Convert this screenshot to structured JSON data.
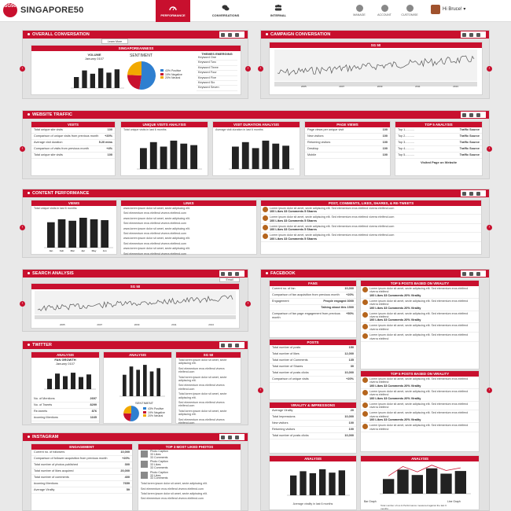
{
  "app": {
    "logo_badge": "SG50",
    "logo_text": "SINGAPORE50"
  },
  "nav": {
    "tabs": [
      {
        "label": "PERFORMANCE"
      },
      {
        "label": "CONVERSATIONS"
      },
      {
        "label": "INTERNAL"
      }
    ]
  },
  "utilities": [
    {
      "label": "MANAGE"
    },
    {
      "label": "ACCOUNT"
    },
    {
      "label": "CUSTOMISE"
    }
  ],
  "user": {
    "greeting": "Hi Bruce!"
  },
  "overall": {
    "title": "OVERALL CONVERSATION",
    "learn_more": "Learn More",
    "banner": "SINGAPOREANNESS",
    "volume_title": "VOLUME",
    "volume_date": "January 0107",
    "volume_values": [
      100,
      80,
      60,
      40,
      20
    ],
    "sentiment_title": "SENTIMENT",
    "sentiment": [
      {
        "label": "43% Positive",
        "value": 43,
        "color": "#2e7fd0"
      },
      {
        "label": "19% Negative",
        "value": 19,
        "color": "#c8102e"
      },
      {
        "label": "20% Neutral",
        "value": 20,
        "color": "#f2a900"
      }
    ],
    "themes_title": "THEMES EMERGING",
    "themes": [
      "Keyword One",
      "Keyword Two",
      "Keyword Three",
      "Keyword Four",
      "Keyword Five",
      "Keyword Six",
      "Keyword Seven"
    ]
  },
  "campaign": {
    "title": "CAMPAIGN CONVERSATION",
    "banner": "SG 50",
    "years": [
      "2005",
      "2007",
      "2009",
      "2011",
      "2013"
    ]
  },
  "website": {
    "title": "WEBSITE TRAFFIC",
    "visits": {
      "head": "VISITS",
      "rows": [
        {
          "label": "Total unique site visits",
          "value": "100"
        },
        {
          "label": "Comparison of unique visits from previous month",
          "value": "+20%"
        },
        {
          "label": "Average visit duration",
          "value": "5.20 mins"
        },
        {
          "label": "Comparison of visits from previous month",
          "value": "+4%"
        },
        {
          "label": "Total unique site visits",
          "value": "100"
        }
      ]
    },
    "unique_analysis": {
      "head": "UNIQUE VISITS ANALYSIS",
      "caption": "Total unique visits in last 6 months",
      "values": [
        70,
        90,
        75,
        95,
        85,
        80
      ]
    },
    "duration_analysis": {
      "head": "VISIT DURATION ANALYSIS",
      "caption": "Average visit duration in last 6 months",
      "values": [
        75,
        90,
        70,
        95,
        85,
        78
      ]
    },
    "pageviews": {
      "head": "PAGE VIEWS",
      "rows": [
        {
          "label": "Page views per unique visit",
          "value": "100"
        },
        {
          "label": "New visitors",
          "value": "100"
        },
        {
          "label": "Returning visitors",
          "value": "100"
        },
        {
          "label": "Desktop",
          "value": "100"
        },
        {
          "label": "Mobile",
          "value": "100"
        }
      ]
    },
    "top5": {
      "head": "TOP 5 ANALYSIS",
      "rows": [
        "Top 1...........",
        "Top 2...........",
        "Top 3...........",
        "Top 4...........",
        "Top 5..........."
      ],
      "source_label": "Traffic Source",
      "footer": "Visited Page on Website"
    }
  },
  "content": {
    "title": "CONTENT PERFORMANCE",
    "views": {
      "head": "VIEWS",
      "caption": "Total unique visits in last 6 months",
      "months": [
        "Jan",
        "Feb",
        "Mar",
        "Apr",
        "May",
        "Jun"
      ],
      "values": [
        85,
        95,
        90,
        100,
        95,
        92
      ]
    },
    "links": {
      "head": "LINKS",
      "lines": [
        "www.lorem ipsum dolor sit amet, secte adipiscing elit.",
        "Sed elementum eros eleifend viverra eleifend.com",
        "www.lorem ipsum dolor sit amet, secte adipiscing elit.",
        "Sed elementum eros eleifend viverra eleifend.com",
        "www.lorem ipsum dolor sit amet, secte adipiscing elit.",
        "Sed elementum eros eleifend viverra eleifend.com",
        "www.lorem ipsum dolor sit amet, secte adipiscing elit.",
        "Sed elementum eros eleifend viverra eleifend.com",
        "www.lorem ipsum dolor sit amet, secte adipiscing elit.",
        "Sed elementum eros eleifend viverra eleifend.com"
      ]
    },
    "posts": {
      "head": "POST, COMMENTS, LIKES, SHARES, & RE-TWEETS",
      "items": [
        {
          "text": "Lorem ipsum dolor sit amet, secte adipiscing elit. Sed elementum eros eleifend viverra eleifend.com",
          "stats": "100 Likes 33 Comments 5 Shares"
        },
        {
          "text": "Lorem ipsum dolor sit amet, secte adipiscing elit. Sed elementum eros eleifend viverra eleifend.com",
          "stats": "100 Likes 33 Comments 5 Shares"
        },
        {
          "text": "Lorem ipsum dolor sit amet, secte adipiscing elit. Sed elementum eros eleifend viverra eleifend.com",
          "stats": "100 Likes 33 Comments 5 Shares"
        },
        {
          "text": "Lorem ipsum dolor sit amet, secte adipiscing elit. Sed elementum eros eleifend viverra eleifend.com",
          "stats": "100 Likes 33 Comments 5 Shares"
        }
      ]
    }
  },
  "search": {
    "title": "SEARCH ANALYSIS",
    "banner": "SG 50",
    "email": "Email",
    "years": [
      "2005",
      "2007",
      "2009",
      "2011",
      "2013"
    ]
  },
  "twitter": {
    "title": "TWITTER",
    "stats": {
      "head": "ANALYSIS",
      "caption1": "FAN GROWTH",
      "caption2": "January 0107",
      "rows": [
        {
          "label": "No. of Mentions",
          "value": "2697"
        },
        {
          "label": "No. of Tweets",
          "value": "8299"
        },
        {
          "label": "Re-tweets",
          "value": "876"
        },
        {
          "label": "#coming Mentions",
          "value": "1165"
        }
      ],
      "values": [
        60,
        90,
        75,
        95,
        70,
        85
      ]
    },
    "analysis": {
      "head": "ANALYSIS",
      "sentiment_title": "SENTIMENT",
      "sentiment": [
        {
          "label": "43% Positive",
          "value": 43,
          "color": "#2e7fd0"
        },
        {
          "label": "19% Negative",
          "value": 19,
          "color": "#c8102e"
        },
        {
          "label": "20% Neutral",
          "value": 20,
          "color": "#f2a900"
        }
      ]
    },
    "sg50": {
      "head": "SG 50",
      "lines": [
        "Total lorem ipsum dolor sit amet, secte adipiscing elit.",
        "Sed elementum eros eleifend viverra eleifend.com",
        "Total lorem ipsum dolor sit amet, secte adipiscing elit.",
        "Sed elementum eros eleifend viverra eleifend.com",
        "Total lorem ipsum dolor sit amet, secte adipiscing elit.",
        "Sed elementum eros eleifend viverra eleifend.com",
        "Total lorem ipsum dolor sit amet, secte adipiscing elit.",
        "Sed elementum eros eleifend viverra eleifend.com"
      ]
    }
  },
  "instagram": {
    "title": "INSTAGRAM",
    "engagement": {
      "head": "ENGAGEMENT",
      "rows": [
        {
          "label": "Current no. of followers",
          "value": "10,000"
        },
        {
          "label": "Comparison of follower acquisition from previous month",
          "value": "+20%"
        },
        {
          "label": "Total number of photos published",
          "value": "300"
        },
        {
          "label": "Total number of likes acquired",
          "value": "20,000"
        },
        {
          "label": "Total number of comments",
          "value": "400"
        },
        {
          "label": "#coming Mentions",
          "value": "7659"
        },
        {
          "label": "Average Virality",
          "value": "59"
        }
      ]
    },
    "top3": {
      "head": "TOP 3 MOST LIKED PHOTOS",
      "items": [
        {
          "caption": "Photo Caption",
          "stats": "33 Likes",
          "comments": "33 Comments"
        },
        {
          "caption": "Photo Caption",
          "stats": "33 Likes",
          "comments": "33 Comments"
        },
        {
          "caption": "Photo Caption",
          "stats": "33 Likes",
          "comments": "33 Comments"
        }
      ],
      "lines": [
        "Total lorem ipsum dolor sit amet, secte adipiscing elit.",
        "Sed elementum eros eleifend viverra eleifend.com",
        "Total lorem ipsum dolor sit amet, secte adipiscing elit.",
        "Sed elementum eros eleifend viverra eleifend.com"
      ]
    }
  },
  "facebook": {
    "title": "FACEBOOK",
    "fans": {
      "head": "FANS",
      "rows": [
        {
          "label": "Current no. of fan",
          "value": "10,000"
        },
        {
          "label": "Comparison of fan acquisition from previous month",
          "value": "+20%"
        },
        {
          "label": "Engagement",
          "value": "People engaged 3000"
        },
        {
          "label": "",
          "value": "Talking about this 1500"
        },
        {
          "label": "Comparison of fan page engagement from previous month",
          "value": "+50%"
        }
      ]
    },
    "posts": {
      "head": "POSTS",
      "rows": [
        {
          "label": "Total number of posts",
          "value": "150"
        },
        {
          "label": "Total number of likes",
          "value": "12,000"
        },
        {
          "label": "Total number of Comments",
          "value": "135"
        },
        {
          "label": "Total number of Shares",
          "value": "30"
        },
        {
          "label": "Total number of posts clicks",
          "value": "10,000"
        },
        {
          "label": "Comparison of unique visits",
          "value": "+20%"
        }
      ]
    },
    "virality": {
      "head": "VIRALITY & IMPRESSIONS",
      "rows": [
        {
          "label": "Average Virality",
          "value": "20"
        },
        {
          "label": "Total Impressions",
          "value": "10,000"
        },
        {
          "label": "New visitors",
          "value": "100"
        },
        {
          "label": "Returning visitors",
          "value": "100"
        },
        {
          "label": "Total number of posts clicks",
          "value": "10,000"
        }
      ]
    },
    "top5a": {
      "head": "TOP 5 POSTS BASED ON VIRALITY",
      "items": [
        {
          "text": "Lorem ipsum dolor sit amet, secte adipiscing elit. Sed elementum eros eleifend viverra eleifend",
          "stats": "100 Likes 33 Comments 20% Virality"
        },
        {
          "text": "Lorem ipsum dolor sit amet, secte adipiscing elit. Sed elementum eros eleifend viverra eleifend",
          "stats": "100 Likes 33 Comments 20% Virality"
        },
        {
          "text": "Lorem ipsum dolor sit amet, secte adipiscing elit. Sed elementum eros eleifend viverra eleifend",
          "stats": "100 Likes 33 Comments 20% Virality"
        },
        {
          "text": "Lorem ipsum dolor sit amet, secte adipiscing elit. Sed elementum eros eleifend viverra eleifend",
          "stats": ""
        },
        {
          "text": "Lorem ipsum dolor sit amet, secte adipiscing elit. Sed elementum eros eleifend viverra eleifend",
          "stats": ""
        }
      ]
    },
    "top5b": {
      "head": "TOP 5 POSTS BASED ON VIRALITY",
      "items": [
        {
          "text": "Lorem ipsum dolor sit amet, secte adipiscing elit. Sed elementum eros eleifend viverra eleifend",
          "stats": "100 Likes 33 Comments 20% Virality"
        },
        {
          "text": "Lorem ipsum dolor sit amet, secte adipiscing elit. Sed elementum eros eleifend viverra eleifend",
          "stats": "100 Likes 33 Comments 20% Virality"
        },
        {
          "text": "Lorem ipsum dolor sit amet, secte adipiscing elit. Sed elementum eros eleifend viverra eleifend",
          "stats": ""
        },
        {
          "text": "Lorem ipsum dolor sit amet, secte adipiscing elit. Sed elementum eros eleifend viverra eleifend",
          "stats": "100 Likes 33 Comments 20% Virality"
        },
        {
          "text": "Lorem ipsum dolor sit amet, secte adipiscing elit. Sed elementum eros eleifend viverra eleifend",
          "stats": ""
        }
      ]
    },
    "analysis1": {
      "head": "ANALYSIS",
      "caption": "Average virality in last 6 months",
      "values": [
        70,
        85,
        78,
        92,
        80,
        88
      ]
    },
    "analysis2": {
      "head": "ANALYSIS",
      "caption": "Total number of ios & Performance measured against the last 6 months",
      "legend1": "Bar Graph",
      "legend2": "Line Graph",
      "values": [
        55,
        90,
        70,
        95,
        75,
        85
      ]
    }
  }
}
